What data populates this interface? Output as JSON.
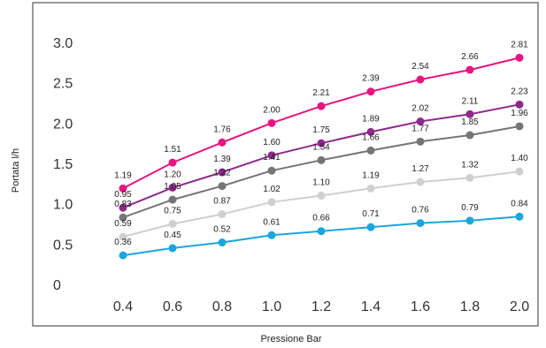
{
  "chart_data": {
    "type": "line",
    "title": "",
    "xlabel": "Pressione Bar",
    "ylabel": "Portata l/h",
    "x": [
      0.4,
      0.6,
      0.8,
      1.0,
      1.2,
      1.4,
      1.6,
      1.8,
      2.0
    ],
    "x_tick_labels": [
      "0.4",
      "0.6",
      "0.8",
      "1.0",
      "1.2",
      "1.4",
      "1.6",
      "1.8",
      "2.0"
    ],
    "y_tick_labels": [
      "0",
      "0.5",
      "1.0",
      "1.5",
      "2.0",
      "2.5",
      "3.0"
    ],
    "y_ticks": [
      0,
      0.5,
      1.0,
      1.5,
      2.0,
      2.5,
      3.0
    ],
    "ylim": [
      0,
      3.0
    ],
    "grid": false,
    "legend": "none",
    "series": [
      {
        "color": "#e6157f",
        "values": [
          1.19,
          1.51,
          1.76,
          2.0,
          2.21,
          2.39,
          2.54,
          2.66,
          2.81
        ],
        "labels": [
          "1.19",
          "1.51",
          "1.76",
          "2.00",
          "2.21",
          "2.39",
          "2.54",
          "2.66",
          "2.81"
        ]
      },
      {
        "color": "#8e2a8b",
        "values": [
          0.95,
          1.2,
          1.39,
          1.6,
          1.75,
          1.89,
          2.02,
          2.11,
          2.23
        ],
        "labels": [
          "0.95",
          "1.20",
          "1.39",
          "1.60",
          "1.75",
          "1.89",
          "2.02",
          "2.11",
          "2.23"
        ]
      },
      {
        "color": "#757575",
        "values": [
          0.83,
          1.05,
          1.22,
          1.41,
          1.54,
          1.66,
          1.77,
          1.85,
          1.96
        ],
        "labels": [
          "0.83",
          "1.05",
          "1.22",
          "1.41",
          "1.54",
          "1.66",
          "1.77",
          "1.85",
          "1.96"
        ]
      },
      {
        "color": "#cfcfcf",
        "values": [
          0.59,
          0.75,
          0.87,
          1.02,
          1.1,
          1.19,
          1.27,
          1.32,
          1.4
        ],
        "labels": [
          "0.59",
          "0.75",
          "0.87",
          "1.02",
          "1.10",
          "1.19",
          "1.27",
          "1.32",
          "1.40"
        ]
      },
      {
        "color": "#1ba6dc",
        "values": [
          0.36,
          0.45,
          0.52,
          0.61,
          0.66,
          0.71,
          0.76,
          0.79,
          0.84
        ],
        "labels": [
          "0.36",
          "0.45",
          "0.52",
          "0.61",
          "0.66",
          "0.71",
          "0.76",
          "0.79",
          "0.84"
        ]
      }
    ]
  }
}
